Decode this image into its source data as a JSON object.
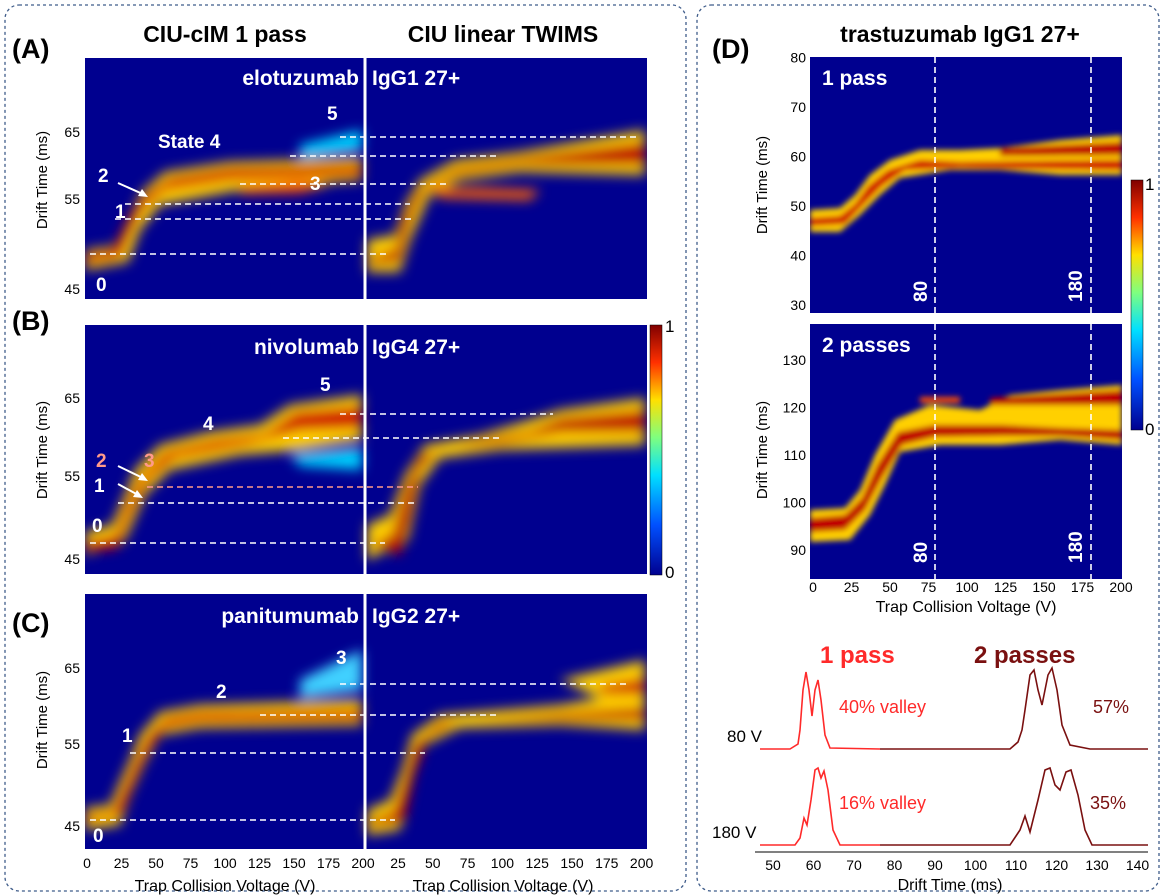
{
  "colors": {
    "panel_border": "#3f5c8a",
    "bg_blue": "#00008f",
    "red": "#ff2a2a",
    "darkred": "#7a1010",
    "state_orange": "#ff9a8a"
  },
  "left": {
    "col_titles": [
      "CIU-cIM 1 pass",
      "CIU linear TWIMS"
    ],
    "xlabel": "Trap Collision Voltage (V)",
    "ylabel": "Drift Time (ms)",
    "xticks_left": [
      "0",
      "25",
      "50",
      "75",
      "100",
      "125",
      "150",
      "175",
      "200"
    ],
    "xticks_right": [
      "25",
      "50",
      "75",
      "100",
      "125",
      "150",
      "175",
      "200"
    ],
    "yticks": [
      "45",
      "55",
      "65"
    ]
  },
  "colorbar": {
    "max_label": "1",
    "min_label": "0"
  },
  "right": {
    "letter": "(D)",
    "title": "trastuzumab IgG1 27+",
    "top_label": "1 pass",
    "bottom_label": "2 passes",
    "yticks_top": [
      "30",
      "40",
      "50",
      "60",
      "70",
      "80"
    ],
    "yticks_bottom": [
      "90",
      "100",
      "110",
      "120",
      "130"
    ],
    "xticks": [
      "0",
      "25",
      "50",
      "75",
      "100",
      "125",
      "150",
      "175",
      "200"
    ],
    "vline_labels": [
      "80",
      "180"
    ],
    "ylabel": "Drift Time (ms)",
    "xlabel": "Trap Collision Voltage (V)",
    "spectra": {
      "hdr_1pass": "1 pass",
      "hdr_2pass": "2 passes",
      "row80": "80 V",
      "row180": "180 V",
      "val80_1": "40% valley",
      "val80_2": "57%",
      "val180_1": "16% valley",
      "val180_2": "35%",
      "xticks": [
        "50",
        "60",
        "70",
        "80",
        "90",
        "100",
        "110",
        "120",
        "130",
        "140"
      ],
      "xlabel": "Drift Time (ms)"
    }
  },
  "chart_data": [
    {
      "type": "heatmap",
      "letter": "(A)",
      "title": "elotuzumab",
      "subtitle": "IgG1 27+",
      "states": [
        "0",
        "1",
        "2",
        "State 4",
        "3",
        "5"
      ],
      "x_range": [
        0,
        200
      ],
      "y_range": [
        45,
        70
      ]
    },
    {
      "type": "heatmap",
      "letter": "(B)",
      "title": "nivolumab",
      "subtitle": "IgG4 27+",
      "states": [
        "0",
        "1",
        "2",
        "3",
        "4",
        "5"
      ],
      "x_range": [
        0,
        200
      ],
      "y_range": [
        45,
        70
      ]
    },
    {
      "type": "heatmap",
      "letter": "(C)",
      "title": "panitumumab",
      "subtitle": "IgG2 27+",
      "states": [
        "0",
        "1",
        "2",
        "3"
      ],
      "x_range": [
        0,
        200
      ],
      "y_range": [
        45,
        70
      ]
    }
  ]
}
